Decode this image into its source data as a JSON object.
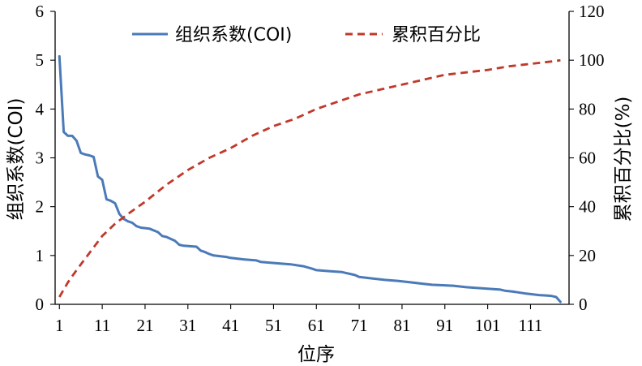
{
  "chart_data": {
    "type": "line",
    "xlabel": "位序",
    "ylabel_left": "组织系数(COI)",
    "ylabel_right": "累积百分比(%)",
    "x_ticks": [
      "1",
      "11",
      "21",
      "31",
      "41",
      "51",
      "61",
      "71",
      "81",
      "91",
      "101",
      "111"
    ],
    "y_left_ticks": [
      "0",
      "1",
      "2",
      "3",
      "4",
      "5",
      "6"
    ],
    "y_right_ticks": [
      "0",
      "20",
      "40",
      "60",
      "80",
      "100",
      "120"
    ],
    "xlim": [
      0,
      120
    ],
    "ylim_left": [
      0,
      6
    ],
    "ylim_right": [
      0,
      120
    ],
    "legend_position": "top",
    "colors": {
      "coi": "#4a7ab8",
      "cumulative": "#c0392b"
    },
    "series": [
      {
        "name": "组织系数(COI)",
        "axis": "left",
        "style": "solid",
        "x": [
          1,
          2,
          3,
          4,
          5,
          6,
          7,
          8,
          9,
          10,
          11,
          12,
          13,
          14,
          15,
          16,
          17,
          18,
          19,
          20,
          22,
          24,
          25,
          26,
          28,
          29,
          30,
          33,
          34,
          35,
          36,
          37,
          40,
          41,
          44,
          47,
          48,
          52,
          55,
          58,
          60,
          61,
          64,
          67,
          70,
          71,
          74,
          77,
          80,
          83,
          86,
          88,
          93,
          96,
          101,
          104,
          105,
          107,
          110,
          113,
          115,
          116,
          117,
          118
        ],
        "values": [
          5.08,
          3.53,
          3.45,
          3.45,
          3.35,
          3.1,
          3.07,
          3.05,
          3.02,
          2.62,
          2.55,
          2.15,
          2.12,
          2.07,
          1.85,
          1.75,
          1.7,
          1.67,
          1.6,
          1.57,
          1.55,
          1.48,
          1.4,
          1.38,
          1.3,
          1.22,
          1.2,
          1.18,
          1.1,
          1.07,
          1.03,
          1.0,
          0.97,
          0.95,
          0.92,
          0.9,
          0.87,
          0.84,
          0.82,
          0.78,
          0.73,
          0.7,
          0.68,
          0.66,
          0.6,
          0.56,
          0.53,
          0.5,
          0.48,
          0.45,
          0.42,
          0.4,
          0.38,
          0.35,
          0.32,
          0.3,
          0.28,
          0.26,
          0.22,
          0.19,
          0.18,
          0.17,
          0.15,
          0.05
        ]
      },
      {
        "name": "累积百分比",
        "axis": "right",
        "style": "dashed",
        "x": [
          1,
          3,
          5,
          8,
          11,
          14,
          17,
          21,
          26,
          31,
          36,
          41,
          46,
          51,
          56,
          61,
          66,
          71,
          76,
          81,
          86,
          91,
          96,
          101,
          106,
          111,
          116,
          118
        ],
        "values": [
          3,
          9,
          14,
          21,
          28,
          33,
          37,
          42,
          49,
          55,
          60,
          64,
          69,
          73,
          76,
          80,
          83,
          86,
          88,
          90,
          92,
          94,
          95,
          96,
          97.5,
          98.5,
          99.5,
          100
        ]
      }
    ]
  }
}
